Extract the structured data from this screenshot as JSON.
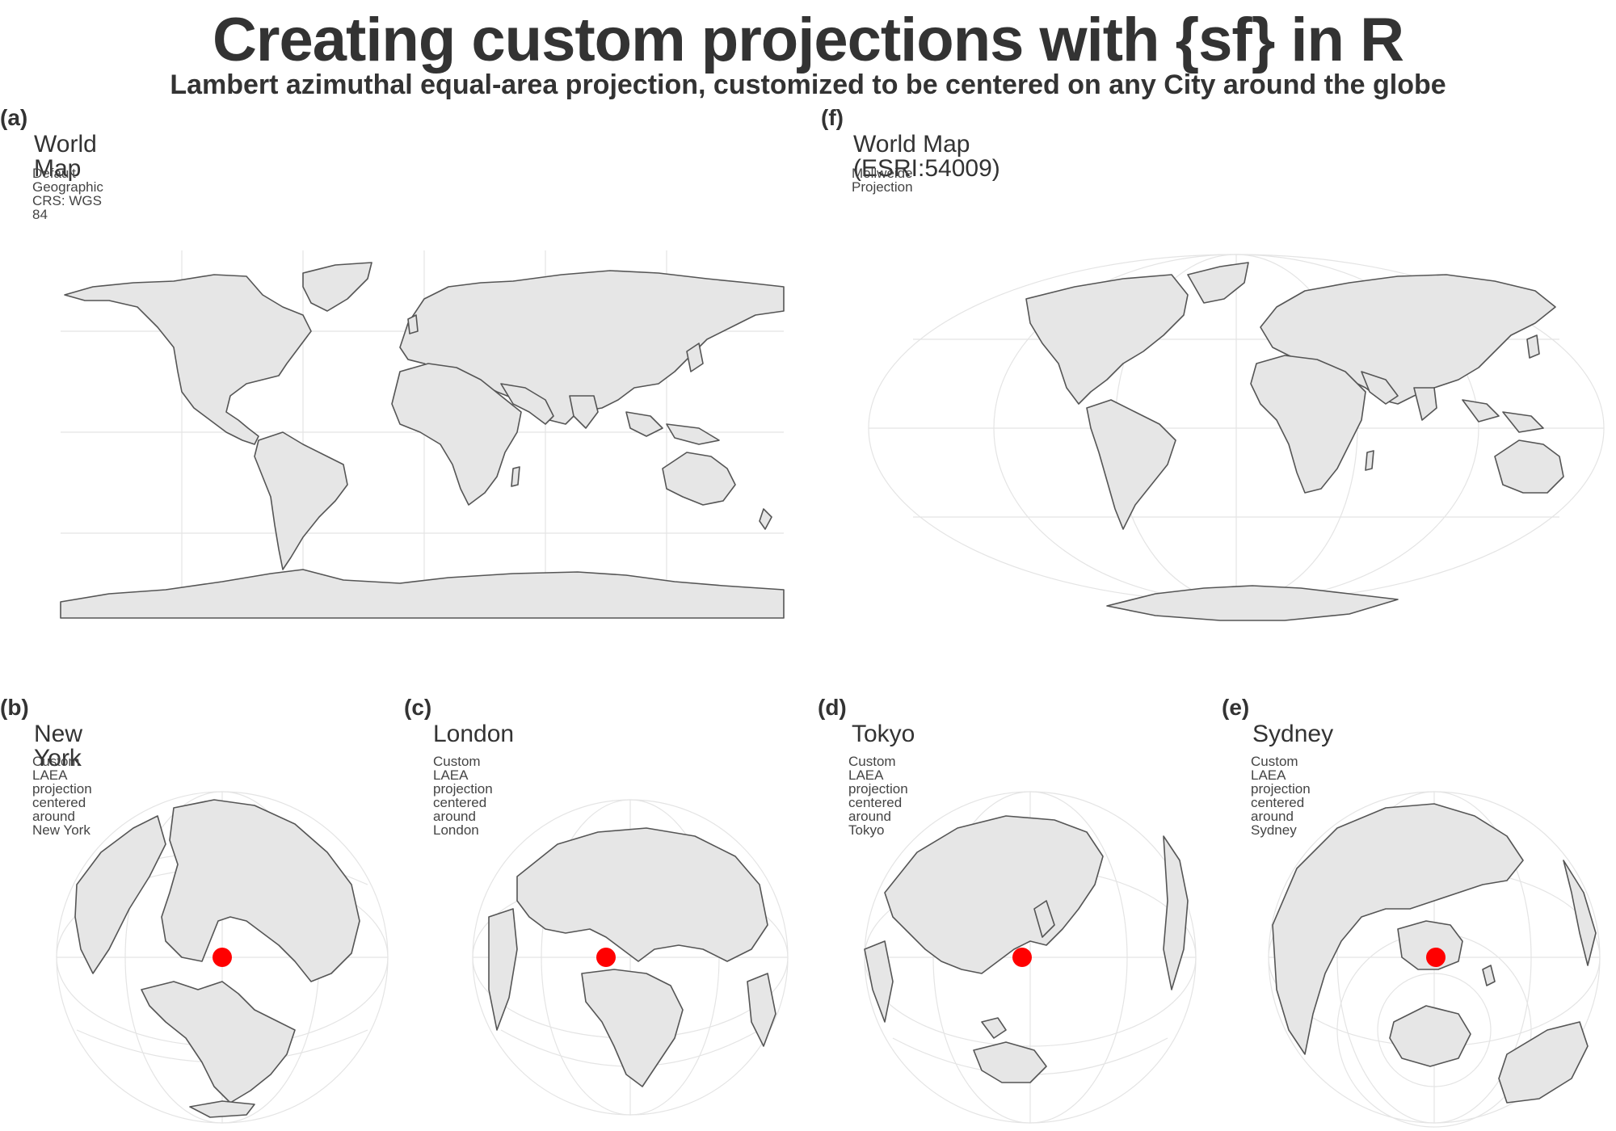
{
  "title": "Creating custom projections with {sf} in R",
  "subtitle": "Lambert azimuthal equal-area projection, customized to be centered on any City around the globe",
  "panels": {
    "a": {
      "tag": "(a)",
      "title": "World Map",
      "subtitle": "Default Geographic CRS: WGS 84"
    },
    "f": {
      "tag": "(f)",
      "title": "World Map (ESRI:54009)",
      "subtitle": "Mollweide Projection"
    },
    "b": {
      "tag": "(b)",
      "title": "New York",
      "subtitle": "Custom LAEA projection centered around New York"
    },
    "c": {
      "tag": "(c)",
      "title": "London",
      "subtitle": "Custom LAEA projection centered around London"
    },
    "d": {
      "tag": "(d)",
      "title": "Tokyo",
      "subtitle": "Custom LAEA projection centered around Tokyo"
    },
    "e": {
      "tag": "(e)",
      "title": "Sydney",
      "subtitle": "Custom LAEA projection centered around Sydney"
    }
  },
  "colors": {
    "land_fill": "#e6e6e6",
    "land_stroke": "#555555",
    "graticule": "#e4e4e4",
    "city_marker": "#ff0000",
    "text": "#333333"
  }
}
